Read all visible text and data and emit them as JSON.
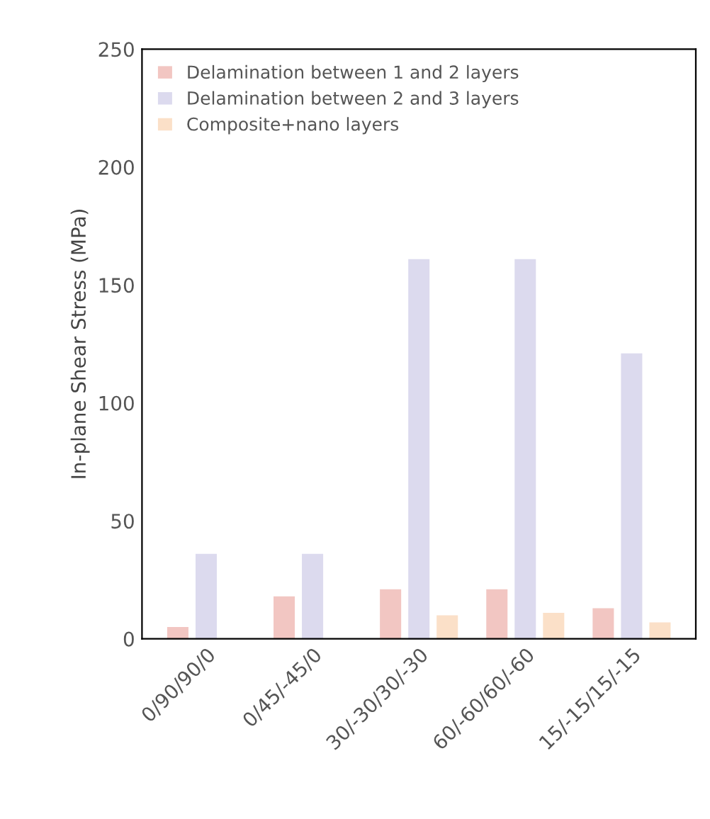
{
  "chart_data": {
    "type": "bar",
    "ylabel": "In-plane Shear Stress (MPa)",
    "categories": [
      "0/90/90/0",
      "0/45/-45/0",
      "30/-30/30/-30",
      "60/-60/60/-60",
      "15/-15/15/-15"
    ],
    "series": [
      {
        "name": "Delamination between 1 and 2 layers",
        "color": "#f2c6c2",
        "values": [
          5,
          18,
          21,
          21,
          13
        ]
      },
      {
        "name": "Delamination between 2 and 3 layers",
        "color": "#dcdaee",
        "values": [
          36,
          36,
          161,
          161,
          121
        ]
      },
      {
        "name": "Composite+nano layers",
        "color": "#fbe0c8",
        "values": [
          null,
          null,
          10,
          11,
          7
        ]
      }
    ],
    "ylim": [
      0,
      250
    ],
    "yticks": [
      0,
      50,
      100,
      150,
      200,
      250
    ],
    "grid": false,
    "legend": "top left"
  }
}
